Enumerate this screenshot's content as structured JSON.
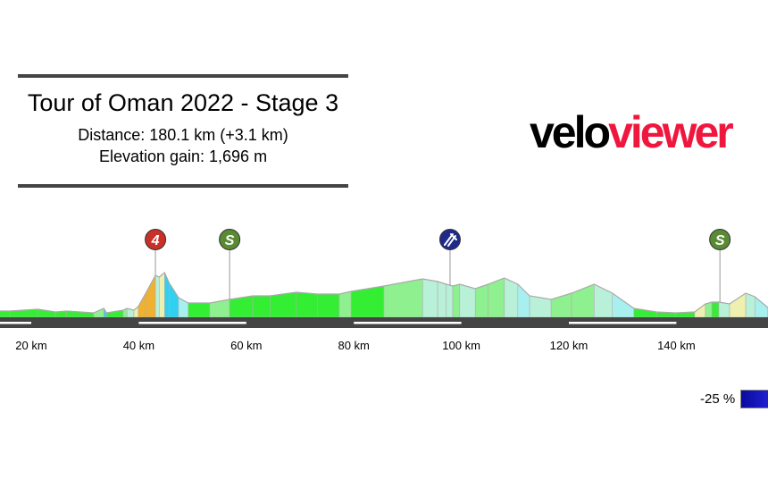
{
  "header": {
    "title": "Tour of Oman 2022 - Stage 3",
    "distance": "Distance: 180.1 km (+3.1 km)",
    "elevation_gain": "Elevation gain: 1,696 m"
  },
  "logo": {
    "part1": "velo",
    "part2": "viewer",
    "color1": "#000000",
    "color2": "#f0173f"
  },
  "legend": {
    "label": "-25 %",
    "color": "#1414c0"
  },
  "chart_data": {
    "type": "area",
    "xlabel": "",
    "ylabel": "",
    "x_ticks": [
      "20 km",
      "40 km",
      "60 km",
      "80 km",
      "100 km",
      "120 km",
      "140 km"
    ],
    "x_tick_values": [
      20,
      40,
      60,
      80,
      100,
      120,
      140
    ],
    "x_unit": "km",
    "profile": {
      "km": [
        5.9,
        16.0,
        21.3,
        24.5,
        26.6,
        31.6,
        33.5,
        34.0,
        37.1,
        37.8,
        39.1,
        39.9,
        41.3,
        43.1,
        43.8,
        44.8,
        45.7,
        47.4,
        49.2,
        53.2,
        56.9,
        61.2,
        64.4,
        69.3,
        73.2,
        77.3,
        79.5,
        85.6,
        92.8,
        95.6,
        97.2,
        98.4,
        99.7,
        102.6,
        105.0,
        108.0,
        110.5,
        112.7,
        116.7,
        120.5,
        124.7,
        128.1,
        132.1,
        136.3,
        139.8,
        143.4,
        145.4,
        146.6,
        147.9,
        149.9,
        152.9,
        154.6,
        157.0
      ],
      "elevation_m": [
        70,
        70,
        90,
        60,
        70,
        50,
        100,
        50,
        80,
        100,
        80,
        120,
        270,
        470,
        450,
        500,
        380,
        220,
        160,
        160,
        200,
        240,
        240,
        280,
        260,
        260,
        290,
        350,
        430,
        400,
        370,
        350,
        370,
        320,
        370,
        440,
        370,
        240,
        200,
        270,
        370,
        270,
        100,
        60,
        50,
        60,
        150,
        170,
        170,
        150,
        270,
        230,
        110
      ]
    },
    "markers": [
      {
        "type": "climb-cat-4",
        "label": "4",
        "km": 43.1,
        "color": "#c8302a"
      },
      {
        "type": "sprint",
        "label": "S",
        "km": 56.9,
        "color": "#5a8a34"
      },
      {
        "type": "feed-zone",
        "label": "",
        "km": 97.9,
        "color": "#1f2a8a"
      },
      {
        "type": "sprint",
        "label": "S",
        "km": 148.1,
        "color": "#5a8a34"
      }
    ],
    "gradient_colors": {
      "steep_up": "#f0b030",
      "up": "#f2d630",
      "mild_up": "#eef0b0",
      "gentle_up": "#8ef08e",
      "flat": "#33ee33",
      "gentle_down": "#b8f0d8",
      "down": "#a8f0f0",
      "steep_down": "#30d0f0"
    }
  }
}
